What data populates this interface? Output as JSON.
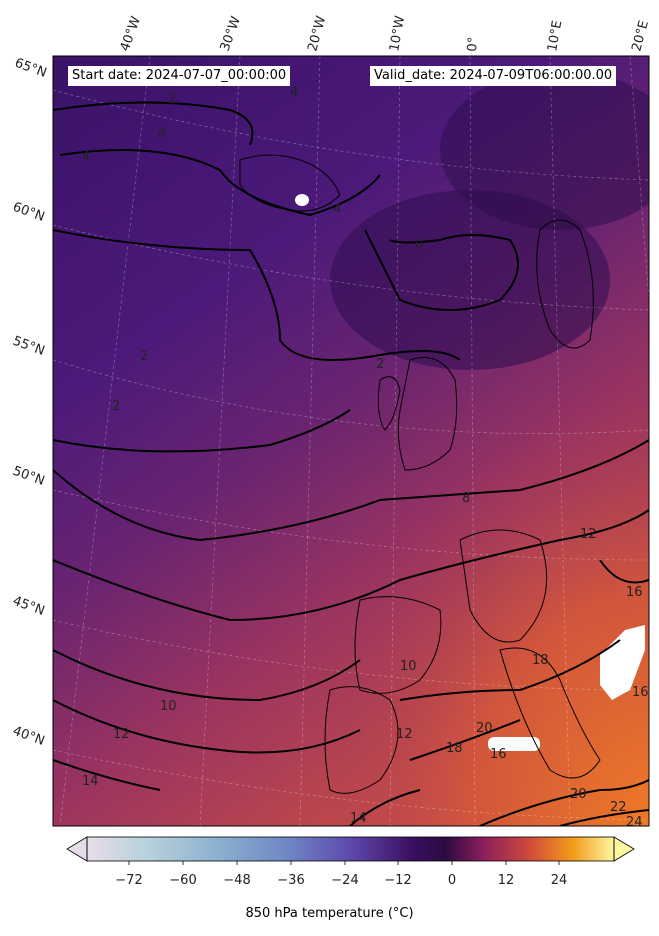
{
  "header": {
    "start_date": "Start date: 2024-07-07_00:00:00",
    "valid_date": "Valid_date: 2024-07-09T06:00:00.00"
  },
  "map": {
    "lon_labels": [
      "40°W",
      "30°W",
      "20°W",
      "10°W",
      "0°",
      "10°E",
      "20°E"
    ],
    "lat_labels": [
      "65°N",
      "60°N",
      "55°N",
      "50°N",
      "45°N",
      "40°N"
    ],
    "contour_labels": [
      "2",
      "4",
      "4",
      "4",
      "4",
      "0",
      "2",
      "2",
      "2",
      "8",
      "12",
      "16",
      "18",
      "10",
      "10",
      "12",
      "14",
      "14",
      "12",
      "18",
      "20",
      "16",
      "20",
      "22",
      "24",
      "16"
    ],
    "colors": {
      "cold": "#4a1a78",
      "mid": "#7a2a6e",
      "warm": "#c24a4a",
      "hot": "#e87a2a"
    }
  },
  "colorbar": {
    "ticks": [
      "−72",
      "−60",
      "−48",
      "−36",
      "−24",
      "−12",
      "0",
      "12",
      "24"
    ],
    "label": "850 hPa temperature (°C)",
    "colors": [
      "#e6dde8",
      "#a8c7d8",
      "#6f8fc2",
      "#5a4fb0",
      "#4a1a78",
      "#2a0b40",
      "#8a1d5c",
      "#d04a3a",
      "#f39a1a",
      "#fcf7a0"
    ]
  }
}
